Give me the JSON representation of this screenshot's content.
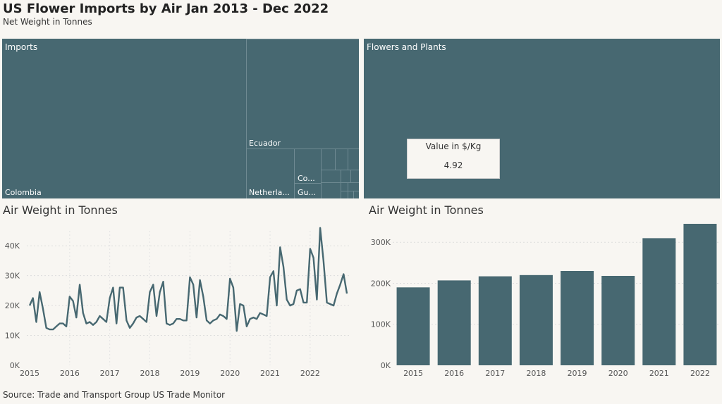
{
  "header": {
    "title": "US Flower Imports by Air Jan 2013 - Dec 2022",
    "subtitle": "Net Weight in Tonnes"
  },
  "colors": {
    "primary": "#476871",
    "background": "#f8f6f2"
  },
  "treemap_imports": {
    "title": "Imports",
    "labels": [
      "Colombia",
      "Ecuador",
      "Netherla...",
      "Co...",
      "Gu..."
    ]
  },
  "treemap_flowers": {
    "title": "Flowers and Plants",
    "kpi_label": "Value in $/Kg",
    "kpi_value": "4.92"
  },
  "line_chart": {
    "title": "Air Weight in Tonnes"
  },
  "bar_chart": {
    "title": "Air Weight in Tonnes"
  },
  "footer": {
    "source": "Source: Trade and Transport Group US Trade Monitor"
  },
  "chart_data": [
    {
      "type": "line",
      "title": "Air Weight in Tonnes",
      "xlabel": "",
      "ylabel": "",
      "x_ticks": [
        "2015",
        "2016",
        "2017",
        "2018",
        "2019",
        "2020",
        "2021",
        "2022"
      ],
      "y_ticks": [
        "0K",
        "10K",
        "20K",
        "30K",
        "40K"
      ],
      "ylim": [
        0,
        45000
      ],
      "x_start": "2015-01",
      "x_end": "2022-12",
      "series": [
        {
          "values": [
            20000,
            22500,
            14500,
            24500,
            19000,
            12500,
            12000,
            12000,
            13000,
            14000,
            14000,
            13000,
            23000,
            21500,
            16000,
            27000,
            17500,
            14000,
            14500,
            13500,
            14500,
            16500,
            15500,
            14500,
            22500,
            26000,
            14000,
            26000,
            26000,
            15000,
            12500,
            14000,
            16000,
            16500,
            15500,
            14500,
            24500,
            27000,
            16500,
            24500,
            28000,
            14000,
            13500,
            14000,
            15500,
            15500,
            15000,
            15000,
            29500,
            27000,
            16000,
            28500,
            23000,
            15000,
            14000,
            15000,
            15500,
            17000,
            16500,
            15500,
            29000,
            26000,
            11500,
            20500,
            20000,
            13000,
            15500,
            16000,
            15500,
            17500,
            17000,
            16500,
            29500,
            31500,
            20000,
            39500,
            33000,
            22000,
            20000,
            20500,
            25000,
            25500,
            21000,
            21000,
            39000,
            36000,
            22000,
            46000,
            35000,
            21000,
            20500,
            20000,
            24000,
            27000,
            30500,
            24000
          ]
        }
      ]
    },
    {
      "type": "bar",
      "title": "Air Weight in Tonnes",
      "xlabel": "",
      "ylabel": "",
      "categories": [
        "2015",
        "2016",
        "2017",
        "2018",
        "2019",
        "2020",
        "2021",
        "2022"
      ],
      "values": [
        190000,
        207000,
        217000,
        220000,
        230000,
        218000,
        310000,
        345000
      ],
      "y_ticks": [
        "0K",
        "100K",
        "200K",
        "300K"
      ],
      "ylim": [
        0,
        345000
      ]
    }
  ]
}
